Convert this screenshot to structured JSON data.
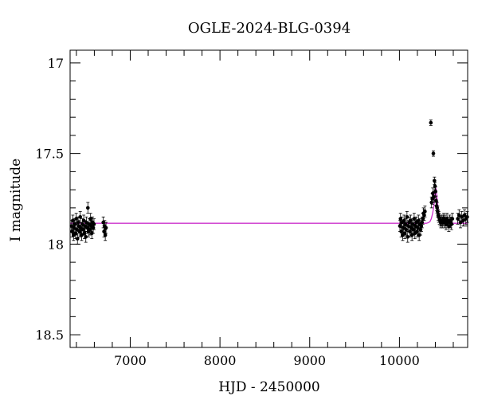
{
  "chart_data": {
    "type": "scatter",
    "title": "OGLE-2024-BLG-0394",
    "xlabel": "HJD - 2450000",
    "ylabel": "I magnitude",
    "xlim": [
      6330,
      10760
    ],
    "ylim": [
      18.57,
      16.93
    ],
    "y_inverted": true,
    "grid": false,
    "x_major_ticks": [
      7000,
      8000,
      9000,
      10000
    ],
    "x_tick_labels": [
      "7000",
      "8000",
      "9000",
      "10000"
    ],
    "x_minor_step": 200,
    "y_major_ticks": [
      17,
      17.5,
      18,
      18.5
    ],
    "y_tick_labels": [
      "17",
      "17.5",
      "18",
      "18.5"
    ],
    "y_minor_step": 0.1,
    "series": [
      {
        "kind": "observations",
        "color": "#000000",
        "x": [
          6345,
          6352,
          6360,
          6368,
          6375,
          6382,
          6390,
          6398,
          6405,
          6412,
          6420,
          6428,
          6436,
          6443,
          6450,
          6458,
          6466,
          6474,
          6482,
          6490,
          6498,
          6505,
          6512,
          6520,
          6528,
          6535,
          6542,
          6550,
          6558,
          6565,
          6572,
          6580,
          6588,
          6596,
          6700,
          6708,
          6715,
          6722,
          6730,
          10005,
          10012,
          10020,
          10028,
          10036,
          10044,
          10052,
          10060,
          10068,
          10076,
          10084,
          10092,
          10100,
          10108,
          10116,
          10124,
          10132,
          10140,
          10148,
          10156,
          10164,
          10172,
          10180,
          10188,
          10196,
          10204,
          10212,
          10220,
          10228,
          10236,
          10244,
          10252,
          10260,
          10268,
          10276,
          10284,
          10350,
          10358,
          10366,
          10372,
          10378,
          10384,
          10390,
          10396,
          10402,
          10408,
          10414,
          10420,
          10426,
          10432,
          10438,
          10446,
          10454,
          10462,
          10470,
          10478,
          10486,
          10494,
          10502,
          10510,
          10520,
          10530,
          10540,
          10550,
          10560,
          10570,
          10580,
          10590,
          10650,
          10665,
          10680,
          10695,
          10710,
          10725,
          10740,
          10755
        ],
        "y": [
          17.9,
          17.93,
          17.87,
          17.95,
          17.91,
          17.89,
          17.94,
          17.86,
          17.92,
          17.97,
          17.88,
          17.9,
          17.93,
          17.85,
          17.91,
          17.95,
          17.89,
          17.92,
          17.87,
          17.94,
          17.9,
          17.96,
          17.88,
          17.91,
          17.8,
          17.93,
          17.89,
          17.92,
          17.86,
          17.9,
          17.94,
          17.88,
          17.91,
          17.89,
          17.88,
          17.93,
          17.9,
          17.95,
          17.91,
          17.9,
          17.86,
          17.93,
          17.88,
          17.95,
          17.91,
          17.87,
          17.94,
          17.89,
          17.92,
          17.85,
          17.96,
          17.9,
          17.88,
          17.93,
          17.87,
          17.91,
          17.95,
          17.89,
          17.92,
          17.86,
          17.94,
          17.9,
          17.88,
          17.93,
          17.91,
          17.87,
          17.95,
          17.89,
          17.92,
          17.9,
          17.88,
          17.86,
          17.83,
          17.84,
          17.82,
          17.33,
          17.77,
          17.75,
          17.72,
          17.5,
          17.74,
          17.65,
          17.68,
          17.71,
          17.76,
          17.79,
          17.8,
          17.82,
          17.84,
          17.85,
          17.86,
          17.87,
          17.88,
          17.87,
          17.88,
          17.87,
          17.86,
          17.88,
          17.87,
          17.89,
          17.86,
          17.88,
          17.9,
          17.87,
          17.88,
          17.89,
          17.86,
          17.86,
          17.84,
          17.88,
          17.85,
          17.87,
          17.84,
          17.86,
          17.85
        ],
        "err": [
          0.03,
          0.03,
          0.03,
          0.03,
          0.03,
          0.03,
          0.03,
          0.03,
          0.03,
          0.03,
          0.03,
          0.03,
          0.03,
          0.03,
          0.03,
          0.03,
          0.03,
          0.03,
          0.03,
          0.03,
          0.03,
          0.03,
          0.03,
          0.03,
          0.03,
          0.03,
          0.03,
          0.03,
          0.03,
          0.03,
          0.03,
          0.03,
          0.03,
          0.03,
          0.03,
          0.03,
          0.03,
          0.03,
          0.03,
          0.03,
          0.03,
          0.03,
          0.03,
          0.03,
          0.03,
          0.03,
          0.03,
          0.03,
          0.03,
          0.03,
          0.03,
          0.03,
          0.03,
          0.03,
          0.03,
          0.03,
          0.03,
          0.03,
          0.03,
          0.03,
          0.03,
          0.03,
          0.03,
          0.03,
          0.03,
          0.03,
          0.03,
          0.03,
          0.03,
          0.03,
          0.03,
          0.03,
          0.03,
          0.03,
          0.03,
          0.015,
          0.03,
          0.03,
          0.03,
          0.015,
          0.03,
          0.02,
          0.02,
          0.025,
          0.025,
          0.025,
          0.03,
          0.03,
          0.03,
          0.03,
          0.03,
          0.03,
          0.03,
          0.03,
          0.03,
          0.03,
          0.03,
          0.03,
          0.03,
          0.03,
          0.03,
          0.03,
          0.03,
          0.03,
          0.03,
          0.03,
          0.03,
          0.03,
          0.03,
          0.03,
          0.03,
          0.03,
          0.03,
          0.03,
          0.03
        ]
      },
      {
        "kind": "model",
        "color": "#cc33cc",
        "x": [
          6330,
          10300,
          10320,
          10340,
          10355,
          10370,
          10380,
          10390,
          10395,
          10400,
          10405,
          10410,
          10420,
          10430,
          10445,
          10460,
          10480,
          10500,
          10530,
          10570,
          10760
        ],
        "y": [
          17.885,
          17.885,
          17.882,
          17.876,
          17.86,
          17.83,
          17.8,
          17.76,
          17.73,
          17.7,
          17.69,
          17.7,
          17.75,
          17.8,
          17.84,
          17.86,
          17.875,
          17.88,
          17.883,
          17.885,
          17.885
        ]
      }
    ]
  }
}
